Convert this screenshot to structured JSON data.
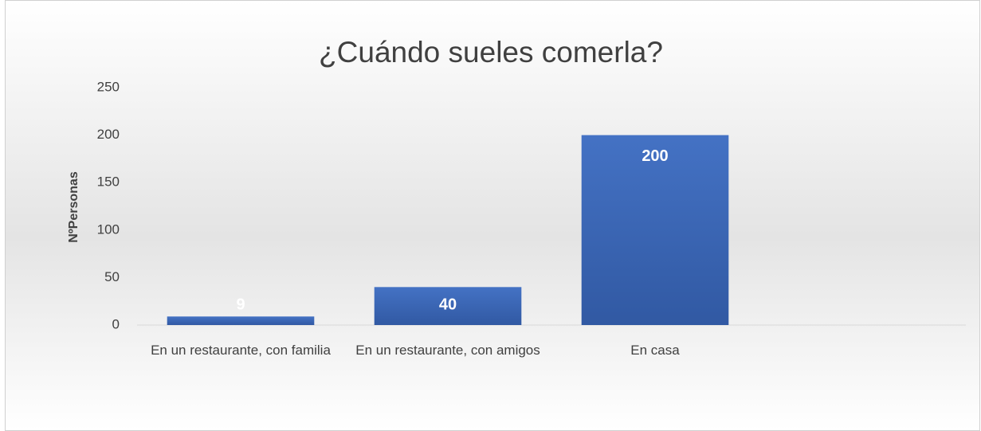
{
  "chart_data": {
    "type": "bar",
    "title": "¿Cuándo sueles comerla?",
    "y_label": "NºPersonas",
    "categories": [
      "En un restaurante, con familia",
      "En un restaurante, con amigos",
      "En casa",
      null
    ],
    "values": [
      9,
      40,
      200,
      null
    ],
    "color": "#4472c4",
    "ylim": [
      0,
      250
    ],
    "yticks": [
      0,
      50,
      100,
      150,
      200,
      250
    ],
    "grid": false
  }
}
